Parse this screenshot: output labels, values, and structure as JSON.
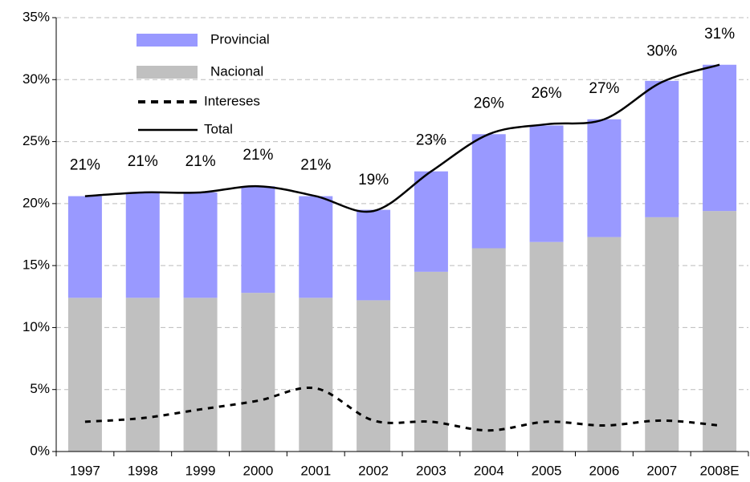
{
  "chart_data": {
    "type": "stacked_bar_line",
    "categories": [
      "1997",
      "1998",
      "1999",
      "2000",
      "2001",
      "2002",
      "2003",
      "2004",
      "2005",
      "2006",
      "2007",
      "2008E"
    ],
    "series": [
      {
        "name": "Provincial",
        "kind": "bar",
        "color": "#9999ff",
        "values": [
          8.2,
          8.5,
          8.5,
          8.6,
          8.2,
          7.3,
          8.1,
          9.2,
          9.4,
          9.5,
          11.0,
          11.8
        ]
      },
      {
        "name": "Nacional",
        "kind": "bar",
        "color": "#c0c0c0",
        "values": [
          12.4,
          12.4,
          12.4,
          12.8,
          12.4,
          12.2,
          14.5,
          16.4,
          16.9,
          17.3,
          18.9,
          19.4
        ]
      },
      {
        "name": "Intereses",
        "kind": "dashed-line",
        "color": "#000000",
        "values": [
          2.4,
          2.7,
          3.4,
          4.1,
          5.1,
          2.5,
          2.4,
          1.7,
          2.4,
          2.1,
          2.5,
          2.1
        ]
      },
      {
        "name": "Total",
        "kind": "line",
        "color": "#000000",
        "values": [
          20.6,
          20.9,
          20.9,
          21.4,
          20.6,
          19.4,
          22.6,
          25.6,
          26.4,
          26.8,
          29.8,
          31.2
        ],
        "value_labels": [
          "21%",
          "21%",
          "21%",
          "21%",
          "21%",
          "19%",
          "23%",
          "26%",
          "26%",
          "27%",
          "30%",
          "31%"
        ]
      }
    ],
    "ylim": [
      0,
      35
    ],
    "yticks": [
      {
        "value": 0,
        "label": "0%"
      },
      {
        "value": 5,
        "label": "5%"
      },
      {
        "value": 10,
        "label": "10%"
      },
      {
        "value": 15,
        "label": "15%"
      },
      {
        "value": 20,
        "label": "20%"
      },
      {
        "value": 25,
        "label": "25%"
      },
      {
        "value": 30,
        "label": "30%"
      },
      {
        "value": 35,
        "label": "35%"
      }
    ],
    "grid": true
  }
}
